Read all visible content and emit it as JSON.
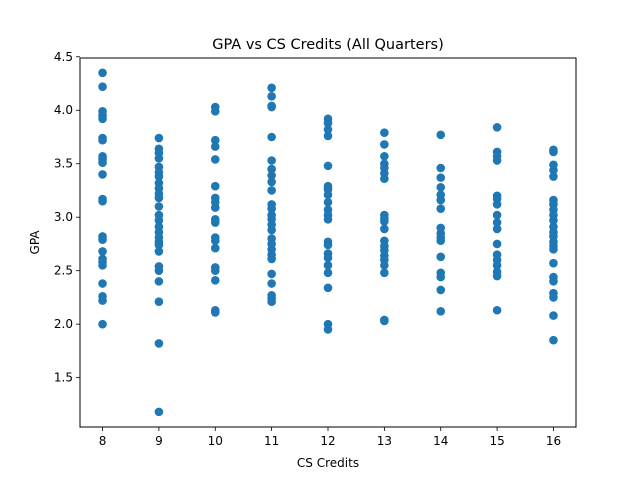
{
  "chart_data": {
    "type": "scatter",
    "title": "GPA vs CS Credits (All Quarters)",
    "xlabel": "CS Credits",
    "ylabel": "GPA",
    "xlim": [
      7.6,
      16.4
    ],
    "ylim": [
      1.0385,
      4.4885
    ],
    "x_ticks": [
      "8",
      "9",
      "10",
      "11",
      "12",
      "13",
      "14",
      "15",
      "16"
    ],
    "y_ticks": [
      "1.5",
      "2.0",
      "2.5",
      "3.0",
      "3.5",
      "4.0",
      "4.5"
    ],
    "grid": false,
    "colors": {
      "points": "#1f77b4",
      "axes": "#000000",
      "background": "#ffffff"
    },
    "points": [
      [
        8,
        4.35
      ],
      [
        8,
        4.22
      ],
      [
        8,
        3.99
      ],
      [
        8,
        3.95
      ],
      [
        8,
        3.92
      ],
      [
        8,
        3.74
      ],
      [
        8,
        3.72
      ],
      [
        8,
        3.57
      ],
      [
        8,
        3.54
      ],
      [
        8,
        3.51
      ],
      [
        8,
        3.4
      ],
      [
        8,
        3.17
      ],
      [
        8,
        3.15
      ],
      [
        8,
        2.82
      ],
      [
        8,
        2.79
      ],
      [
        8,
        2.68
      ],
      [
        8,
        2.61
      ],
      [
        8,
        2.58
      ],
      [
        8,
        2.55
      ],
      [
        8,
        2.38
      ],
      [
        8,
        2.26
      ],
      [
        8,
        2.22
      ],
      [
        8,
        2.0
      ],
      [
        9,
        3.74
      ],
      [
        9,
        3.64
      ],
      [
        9,
        3.6
      ],
      [
        9,
        3.55
      ],
      [
        9,
        3.47
      ],
      [
        9,
        3.42
      ],
      [
        9,
        3.38
      ],
      [
        9,
        3.32
      ],
      [
        9,
        3.27
      ],
      [
        9,
        3.22
      ],
      [
        9,
        3.18
      ],
      [
        9,
        3.1
      ],
      [
        9,
        3.02
      ],
      [
        9,
        2.97
      ],
      [
        9,
        2.91
      ],
      [
        9,
        2.86
      ],
      [
        9,
        2.81
      ],
      [
        9,
        2.77
      ],
      [
        9,
        2.74
      ],
      [
        9,
        2.68
      ],
      [
        9,
        2.54
      ],
      [
        9,
        2.5
      ],
      [
        9,
        2.4
      ],
      [
        9,
        2.21
      ],
      [
        9,
        1.82
      ],
      [
        9,
        1.18
      ],
      [
        10,
        4.03
      ],
      [
        10,
        3.99
      ],
      [
        10,
        3.72
      ],
      [
        10,
        3.66
      ],
      [
        10,
        3.54
      ],
      [
        10,
        3.29
      ],
      [
        10,
        3.18
      ],
      [
        10,
        3.14
      ],
      [
        10,
        3.09
      ],
      [
        10,
        2.98
      ],
      [
        10,
        2.95
      ],
      [
        10,
        2.81
      ],
      [
        10,
        2.78
      ],
      [
        10,
        2.71
      ],
      [
        10,
        2.53
      ],
      [
        10,
        2.5
      ],
      [
        10,
        2.41
      ],
      [
        10,
        2.13
      ],
      [
        10,
        2.11
      ],
      [
        11,
        4.21
      ],
      [
        11,
        4.13
      ],
      [
        11,
        4.04
      ],
      [
        11,
        4.03
      ],
      [
        11,
        3.75
      ],
      [
        11,
        3.53
      ],
      [
        11,
        3.45
      ],
      [
        11,
        3.39
      ],
      [
        11,
        3.33
      ],
      [
        11,
        3.25
      ],
      [
        11,
        3.12
      ],
      [
        11,
        3.08
      ],
      [
        11,
        3.02
      ],
      [
        11,
        2.98
      ],
      [
        11,
        2.93
      ],
      [
        11,
        2.88
      ],
      [
        11,
        2.8
      ],
      [
        11,
        2.75
      ],
      [
        11,
        2.7
      ],
      [
        11,
        2.65
      ],
      [
        11,
        2.61
      ],
      [
        11,
        2.47
      ],
      [
        11,
        2.38
      ],
      [
        11,
        2.27
      ],
      [
        11,
        2.24
      ],
      [
        11,
        2.21
      ],
      [
        12,
        3.92
      ],
      [
        12,
        3.88
      ],
      [
        12,
        3.82
      ],
      [
        12,
        3.76
      ],
      [
        12,
        3.48
      ],
      [
        12,
        3.29
      ],
      [
        12,
        3.26
      ],
      [
        12,
        3.21
      ],
      [
        12,
        3.14
      ],
      [
        12,
        3.07
      ],
      [
        12,
        3.02
      ],
      [
        12,
        2.98
      ],
      [
        12,
        2.77
      ],
      [
        12,
        2.74
      ],
      [
        12,
        2.66
      ],
      [
        12,
        2.62
      ],
      [
        12,
        2.55
      ],
      [
        12,
        2.48
      ],
      [
        12,
        2.34
      ],
      [
        12,
        2.0
      ],
      [
        12,
        1.95
      ],
      [
        13,
        3.79
      ],
      [
        13,
        3.68
      ],
      [
        13,
        3.57
      ],
      [
        13,
        3.5
      ],
      [
        13,
        3.46
      ],
      [
        13,
        3.41
      ],
      [
        13,
        3.36
      ],
      [
        13,
        3.02
      ],
      [
        13,
        2.99
      ],
      [
        13,
        2.96
      ],
      [
        13,
        2.89
      ],
      [
        13,
        2.78
      ],
      [
        13,
        2.73
      ],
      [
        13,
        2.69
      ],
      [
        13,
        2.64
      ],
      [
        13,
        2.6
      ],
      [
        13,
        2.55
      ],
      [
        13,
        2.48
      ],
      [
        13,
        2.04
      ],
      [
        13,
        2.03
      ],
      [
        14,
        3.77
      ],
      [
        14,
        3.46
      ],
      [
        14,
        3.37
      ],
      [
        14,
        3.28
      ],
      [
        14,
        3.21
      ],
      [
        14,
        3.16
      ],
      [
        14,
        3.08
      ],
      [
        14,
        2.9
      ],
      [
        14,
        2.85
      ],
      [
        14,
        2.81
      ],
      [
        14,
        2.78
      ],
      [
        14,
        2.63
      ],
      [
        14,
        2.48
      ],
      [
        14,
        2.44
      ],
      [
        14,
        2.32
      ],
      [
        14,
        2.12
      ],
      [
        15,
        3.84
      ],
      [
        15,
        3.61
      ],
      [
        15,
        3.57
      ],
      [
        15,
        3.53
      ],
      [
        15,
        3.2
      ],
      [
        15,
        3.17
      ],
      [
        15,
        3.12
      ],
      [
        15,
        3.02
      ],
      [
        15,
        2.95
      ],
      [
        15,
        2.89
      ],
      [
        15,
        2.75
      ],
      [
        15,
        2.65
      ],
      [
        15,
        2.6
      ],
      [
        15,
        2.55
      ],
      [
        15,
        2.49
      ],
      [
        15,
        2.45
      ],
      [
        15,
        2.13
      ],
      [
        16,
        3.63
      ],
      [
        16,
        3.61
      ],
      [
        16,
        3.49
      ],
      [
        16,
        3.44
      ],
      [
        16,
        3.38
      ],
      [
        16,
        3.16
      ],
      [
        16,
        3.12
      ],
      [
        16,
        3.07
      ],
      [
        16,
        3.02
      ],
      [
        16,
        2.97
      ],
      [
        16,
        2.91
      ],
      [
        16,
        2.86
      ],
      [
        16,
        2.82
      ],
      [
        16,
        2.77
      ],
      [
        16,
        2.73
      ],
      [
        16,
        2.7
      ],
      [
        16,
        2.57
      ],
      [
        16,
        2.44
      ],
      [
        16,
        2.4
      ],
      [
        16,
        2.29
      ],
      [
        16,
        2.25
      ],
      [
        16,
        2.08
      ],
      [
        16,
        1.85
      ]
    ]
  }
}
